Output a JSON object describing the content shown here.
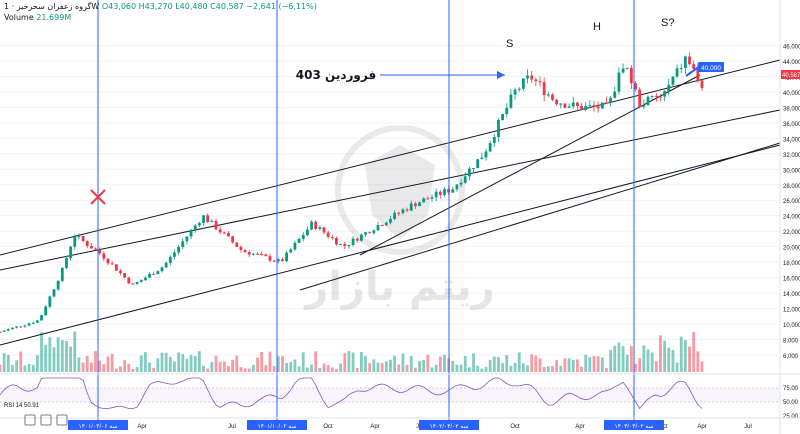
{
  "header": {
    "symbol": "گروه زعفران سحرخیز · 1W",
    "ohlc": "O43,060 H43,270 L40,480 C40,587 −2,641 (−6,11%)",
    "volume_label": "Volume",
    "volume_value": "21.699M"
  },
  "price_axis": {
    "ticks": [
      "46,000",
      "44,000",
      "42,000",
      "40,000",
      "38,000",
      "36,000",
      "34,000",
      "32,000",
      "30,000",
      "28,000",
      "26,000",
      "24,000",
      "22,000",
      "20,000",
      "18,000",
      "16,000",
      "14,000",
      "12,000",
      "10,000",
      "8,000",
      "6,000"
    ],
    "last_price_badge": "40,587",
    "target_badge": "40,000"
  },
  "rsi_panel": {
    "label": "RSI 14",
    "value": "50.91",
    "ticks": [
      "75.00",
      "50.00",
      "25.00"
    ]
  },
  "time_axis": {
    "labels": [
      "Apr",
      "Jul",
      "Oct",
      "Apr",
      "Jul",
      "Oct",
      "Apr",
      "Jul",
      "Oct",
      "Apr",
      "Jul"
    ],
    "date_badges": [
      "۱۴۰۱/۰۴/۰۶ سه",
      "۱۴۰۱/۱۰/۰۲ سه",
      "۱۴۰۲/۰۴/۰۲ سه",
      "۱۴۰۳/۰۴/۰۲ سه"
    ]
  },
  "annotations": {
    "arrow_text": "فروردین 403",
    "left_shoulder": "S",
    "head": "H",
    "right_shoulder": "S?",
    "watermark": "ریتم بازار"
  },
  "colors": {
    "up": "#089981",
    "down": "#f23645",
    "trendline": "#131722",
    "vline": "#2962ff",
    "rsi": "#7e57c2",
    "badge": "#2962ff"
  },
  "chart_data": {
    "type": "candlestick",
    "ylim": [
      6000,
      48000
    ],
    "close_trajectory": [
      {
        "t": 0.0,
        "close": 9000
      },
      {
        "t": 0.05,
        "close": 10500
      },
      {
        "t": 0.08,
        "close": 17000
      },
      {
        "t": 0.095,
        "close": 21500
      },
      {
        "t": 0.13,
        "close": 19000
      },
      {
        "t": 0.17,
        "close": 15000
      },
      {
        "t": 0.21,
        "close": 17500
      },
      {
        "t": 0.26,
        "close": 24000
      },
      {
        "t": 0.31,
        "close": 19500
      },
      {
        "t": 0.36,
        "close": 18000
      },
      {
        "t": 0.4,
        "close": 23000
      },
      {
        "t": 0.44,
        "close": 20000
      },
      {
        "t": 0.48,
        "close": 22500
      },
      {
        "t": 0.53,
        "close": 25500
      },
      {
        "t": 0.58,
        "close": 27500
      },
      {
        "t": 0.62,
        "close": 32000
      },
      {
        "t": 0.66,
        "close": 40000
      },
      {
        "t": 0.68,
        "close": 42000
      },
      {
        "t": 0.71,
        "close": 39000
      },
      {
        "t": 0.74,
        "close": 38000
      },
      {
        "t": 0.78,
        "close": 38000
      },
      {
        "t": 0.8,
        "close": 44000
      },
      {
        "t": 0.82,
        "close": 38500
      },
      {
        "t": 0.85,
        "close": 39500
      },
      {
        "t": 0.88,
        "close": 44500
      },
      {
        "t": 0.9,
        "close": 40587
      }
    ],
    "rsi_range": [
      25,
      90
    ]
  }
}
